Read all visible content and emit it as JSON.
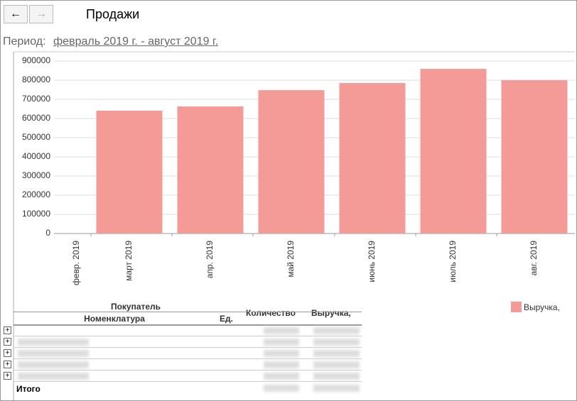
{
  "header": {
    "title": "Продажи",
    "period_label": "Период:",
    "period_link": "февраль 2019 г. - август 2019 г."
  },
  "chart_data": {
    "type": "bar",
    "categories": [
      "февр. 2019",
      "март 2019",
      "апр. 2019",
      "май 2019",
      "июнь 2019",
      "июль 2019",
      "авг. 2019"
    ],
    "series": [
      {
        "name": "Выручка,",
        "color": "#f49a97",
        "values": [
          0,
          641000,
          663000,
          748000,
          785000,
          859000,
          800000
        ]
      }
    ],
    "ylim": [
      0,
      900000
    ],
    "yticks": [
      0,
      100000,
      200000,
      300000,
      400000,
      500000,
      600000,
      700000,
      800000,
      900000
    ],
    "grid": true,
    "legend": "right"
  },
  "table": {
    "headers": {
      "buyer": "Покупатель",
      "item": "Номенклатура",
      "unit": "Ед.",
      "qty": "Количество",
      "revenue": "Выручка,"
    },
    "total": "Итого"
  }
}
